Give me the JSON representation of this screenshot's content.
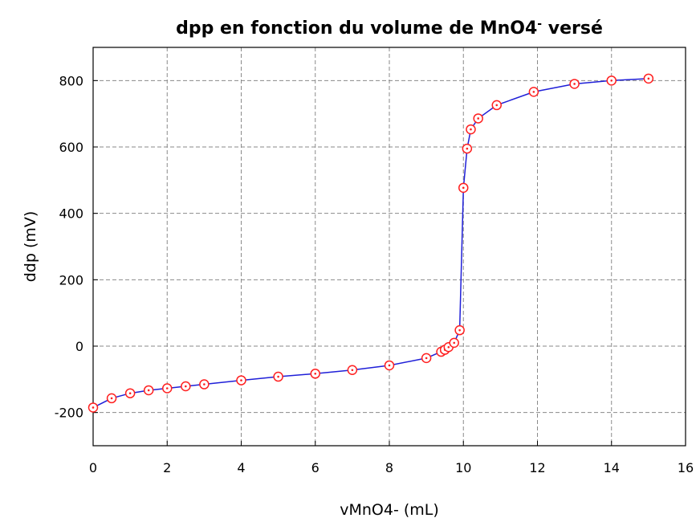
{
  "chart_data": {
    "type": "line",
    "title_main": "dpp en fonction du volume de MnO4",
    "title_sup": "-",
    "title_end": " versé",
    "xlabel": "vMnO4- (mL)",
    "ylabel": "ddp (mV)",
    "xlim": [
      0,
      16
    ],
    "ylim": [
      -300,
      900
    ],
    "xticks": [
      0,
      2,
      4,
      6,
      8,
      10,
      12,
      14,
      16
    ],
    "yticks": [
      -200,
      0,
      200,
      400,
      600,
      800
    ],
    "grid": true,
    "series": [
      {
        "line_color": "#1f1fd8",
        "marker_color": "#ff2020",
        "x": [
          0,
          0.5,
          1,
          1.5,
          2,
          2.5,
          3,
          4,
          5,
          6,
          7,
          8,
          9,
          9.4,
          9.5,
          9.6,
          9.75,
          9.9,
          10.0,
          10.1,
          10.2,
          10.4,
          10.9,
          11.9,
          13.0,
          14.0,
          15.0
        ],
        "y": [
          -185,
          -157,
          -142,
          -133,
          -127,
          -121,
          -115,
          -103,
          -92,
          -83,
          -72,
          -58,
          -36,
          -17,
          -11,
          -3,
          10,
          48,
          477,
          595,
          653,
          686,
          726,
          766,
          790,
          800,
          806
        ]
      }
    ]
  }
}
